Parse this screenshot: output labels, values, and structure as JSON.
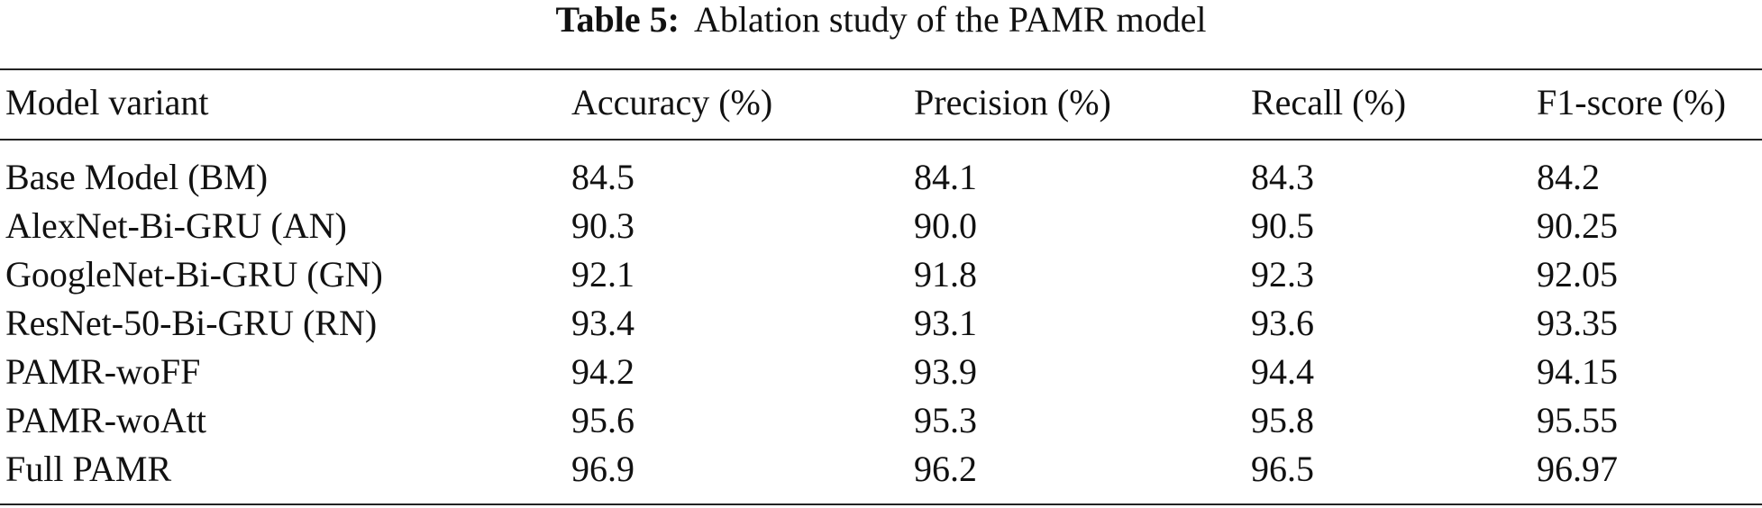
{
  "caption": {
    "label": "Table 5:",
    "text": "Ablation study of the PAMR model"
  },
  "table": {
    "columns": [
      "Model variant",
      "Accuracy (%)",
      "Precision (%)",
      "Recall (%)",
      "F1-score (%)"
    ],
    "rows": [
      [
        "Base Model (BM)",
        "84.5",
        "84.1",
        "84.3",
        "84.2"
      ],
      [
        "AlexNet-Bi-GRU (AN)",
        "90.3",
        "90.0",
        "90.5",
        "90.25"
      ],
      [
        "GoogleNet-Bi-GRU (GN)",
        "92.1",
        "91.8",
        "92.3",
        "92.05"
      ],
      [
        "ResNet-50-Bi-GRU (RN)",
        "93.4",
        "93.1",
        "93.6",
        "93.35"
      ],
      [
        "PAMR-woFF",
        "94.2",
        "93.9",
        "94.4",
        "94.15"
      ],
      [
        "PAMR-woAtt",
        "95.6",
        "95.3",
        "95.8",
        "95.55"
      ],
      [
        "Full PAMR",
        "96.9",
        "96.2",
        "96.5",
        "96.97"
      ]
    ]
  }
}
